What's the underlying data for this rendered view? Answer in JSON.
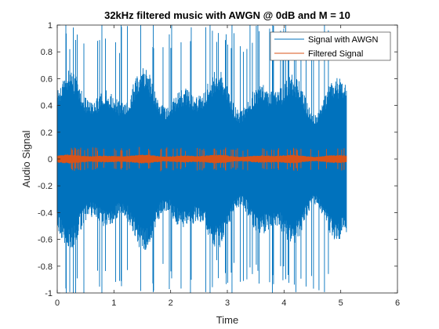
{
  "chart_data": {
    "type": "line",
    "title": "32kHz filtered music with AWGN @ 0dB and M = 10",
    "xlabel": "Time",
    "ylabel": "Audio Signal",
    "xlim": [
      0,
      6
    ],
    "ylim": [
      -1,
      1
    ],
    "xticks": [
      "0",
      "1",
      "2",
      "3",
      "4",
      "5",
      "6"
    ],
    "yticks": [
      "-1",
      "-0.8",
      "-0.6",
      "-0.4",
      "-0.2",
      "0",
      "0.2",
      "0.4",
      "0.6",
      "0.8",
      "1"
    ],
    "grid": false,
    "legend_position": "top-right",
    "series": [
      {
        "name": "Signal with AWGN",
        "color": "#0072BD",
        "x_range": [
          0,
          5.1
        ],
        "envelope_abs_typical": 0.6,
        "envelope_abs_peak": 1.0
      },
      {
        "name": "Filtered Signal",
        "color": "#D95319",
        "x_range": [
          0,
          5.1
        ],
        "envelope_abs_typical": 0.03,
        "envelope_abs_peak": 0.08
      }
    ]
  }
}
